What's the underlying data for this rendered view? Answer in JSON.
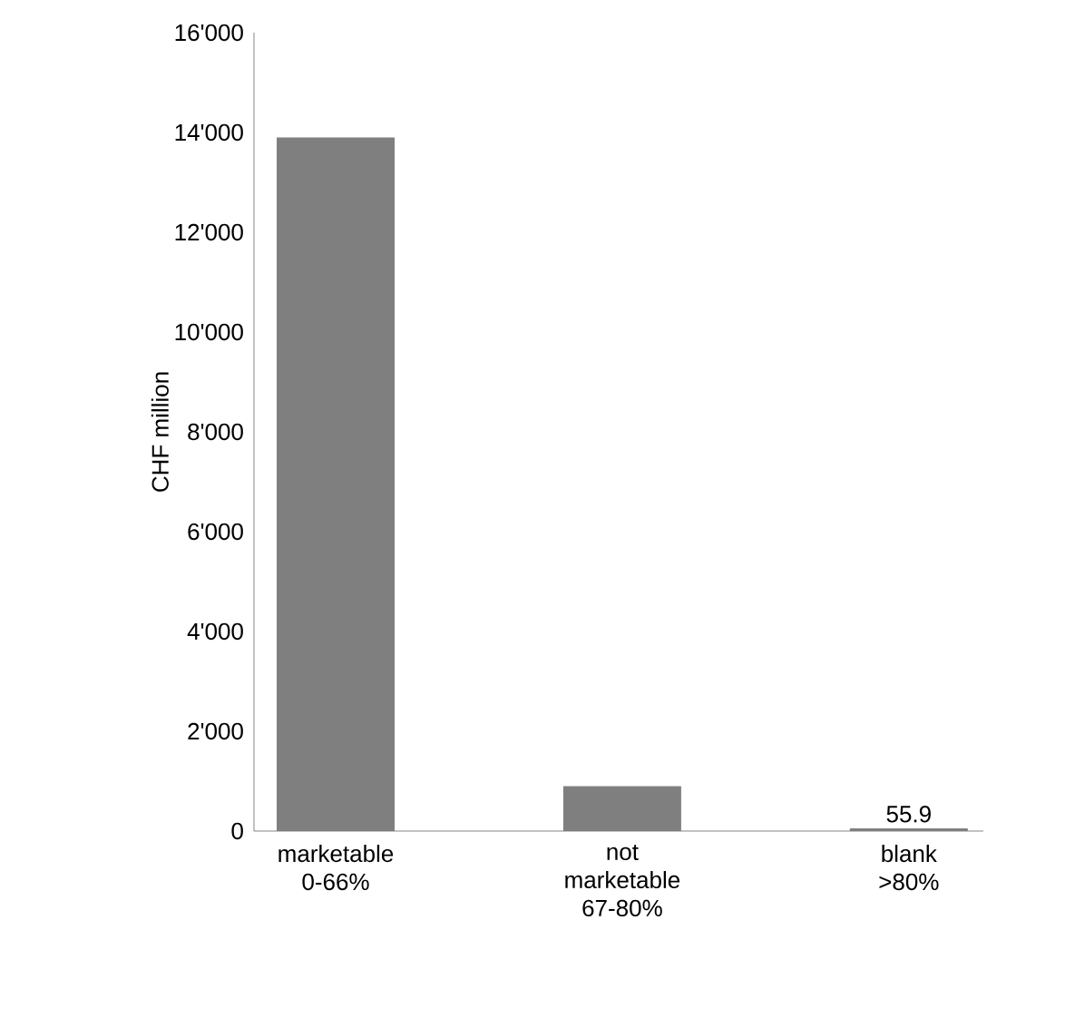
{
  "chart_data": {
    "type": "bar",
    "ylabel": "CHF million",
    "categories": [
      "marketable 0-66%",
      "not marketable 67-80%",
      "blank >80%"
    ],
    "values": [
      13900,
      900,
      55.9
    ],
    "color": "#7f7f7f",
    "value_labels": [
      null,
      null,
      "55.9"
    ],
    "ylim": [
      0,
      16000
    ],
    "yticks": [
      0,
      {
        "value": 2000,
        "label": "2'000"
      },
      {
        "value": 4000,
        "label": "4'000"
      },
      {
        "value": 6000,
        "label": "6'000"
      },
      {
        "value": 8000,
        "label": "8'000"
      },
      {
        "value": 10000,
        "label": "10'000"
      },
      {
        "value": 12000,
        "label": "12'000"
      },
      {
        "value": 14000,
        "label": "14'000"
      },
      {
        "value": 16000,
        "label": "16'000"
      }
    ],
    "grid": false
  }
}
